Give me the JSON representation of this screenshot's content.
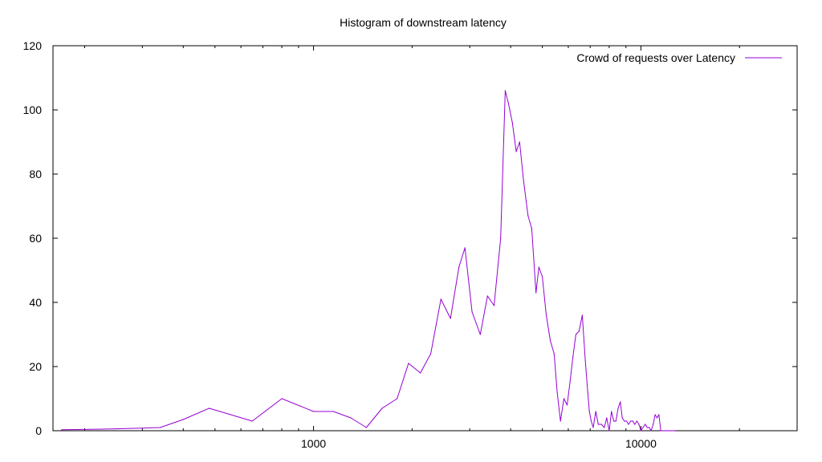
{
  "chart_data": {
    "type": "line",
    "title": "Histogram of downstream latency",
    "xlabel": "",
    "ylabel": "",
    "x_scale": "log",
    "xlim": [
      160,
      30000
    ],
    "ylim": [
      0,
      120
    ],
    "x_ticks": [
      1000,
      10000
    ],
    "x_tick_labels": [
      "1000",
      "10000"
    ],
    "y_ticks": [
      0,
      20,
      40,
      60,
      80,
      100,
      120
    ],
    "y_tick_labels": [
      "0",
      "20",
      "40",
      "60",
      "80",
      "100",
      "120"
    ],
    "grid": false,
    "legend_position": "top-right",
    "series": [
      {
        "name": "Crowd of requests over Latency",
        "color": "#9400d3",
        "x": [
          170,
          200,
          250,
          300,
          340,
          400,
          480,
          650,
          800,
          1000,
          1150,
          1300,
          1450,
          1620,
          1800,
          1950,
          2120,
          2280,
          2450,
          2620,
          2780,
          2900,
          3050,
          3230,
          3400,
          3560,
          3730,
          3850,
          3940,
          4050,
          4160,
          4260,
          4380,
          4520,
          4640,
          4780,
          4880,
          5000,
          5140,
          5290,
          5430,
          5550,
          5680,
          5820,
          5950,
          6070,
          6200,
          6330,
          6470,
          6620,
          6760,
          6880,
          6960,
          7050,
          7150,
          7280,
          7410,
          7570,
          7730,
          7860,
          8000,
          8130,
          8260,
          8390,
          8520,
          8650,
          8770,
          8900,
          9030,
          9170,
          9300,
          9440,
          9580,
          9720,
          9860,
          10000,
          10150,
          10300,
          10450,
          10600,
          10750,
          10900,
          11050,
          11200,
          11350,
          11500,
          11650,
          11800,
          11950,
          12100,
          12250,
          12400,
          12550,
          12700
        ],
        "y": [
          0.3,
          0.4,
          0.6,
          0.8,
          1,
          3.5,
          7,
          3,
          10,
          6,
          6,
          4,
          1,
          7,
          10,
          21,
          18,
          24,
          41,
          35,
          51,
          57,
          37,
          30,
          42,
          39,
          60,
          106,
          102,
          96,
          87,
          90,
          78,
          67,
          63,
          43,
          51,
          48,
          36,
          28,
          24,
          12,
          3,
          10,
          8,
          15,
          23,
          30,
          31,
          36,
          22,
          12,
          6,
          3,
          1,
          6,
          2,
          2,
          1,
          4,
          0,
          6,
          3,
          3,
          7,
          9,
          4,
          3,
          3,
          2,
          3,
          3,
          2,
          3,
          2,
          0,
          1,
          2,
          1,
          1,
          0,
          2,
          5,
          4,
          5,
          0,
          0,
          0,
          0,
          0,
          0,
          0,
          0,
          0
        ]
      }
    ]
  }
}
